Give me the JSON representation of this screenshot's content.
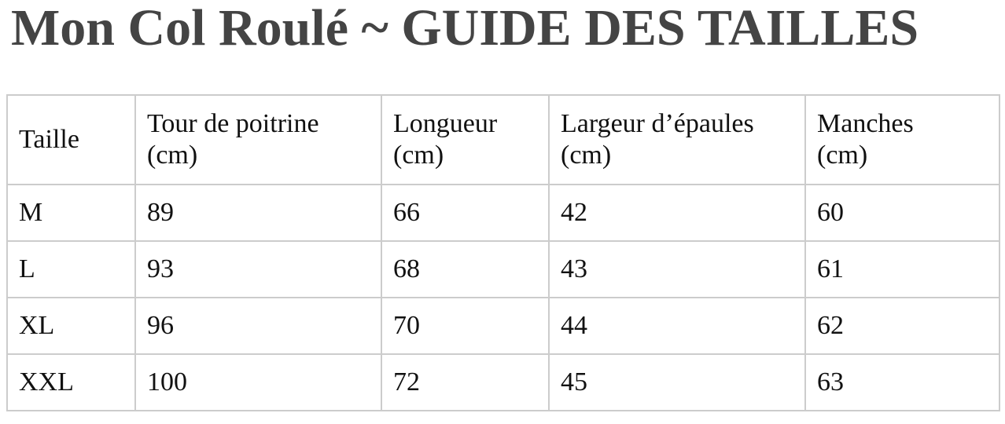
{
  "title": "Mon Col Roulé ~ GUIDE DES TAILLES",
  "table": {
    "headers": [
      [
        "Taille",
        ""
      ],
      [
        "Tour de poitrine",
        "(cm)"
      ],
      [
        "Longueur",
        "(cm)"
      ],
      [
        "Largeur d’épaules",
        "(cm)"
      ],
      [
        "Manches",
        "(cm)"
      ]
    ],
    "rows": [
      [
        "M",
        "89",
        "66",
        "42",
        "60"
      ],
      [
        "L",
        "93",
        "68",
        "43",
        "61"
      ],
      [
        "XL",
        "96",
        "70",
        "44",
        "62"
      ],
      [
        "XXL",
        "100",
        "72",
        "45",
        "63"
      ]
    ]
  }
}
